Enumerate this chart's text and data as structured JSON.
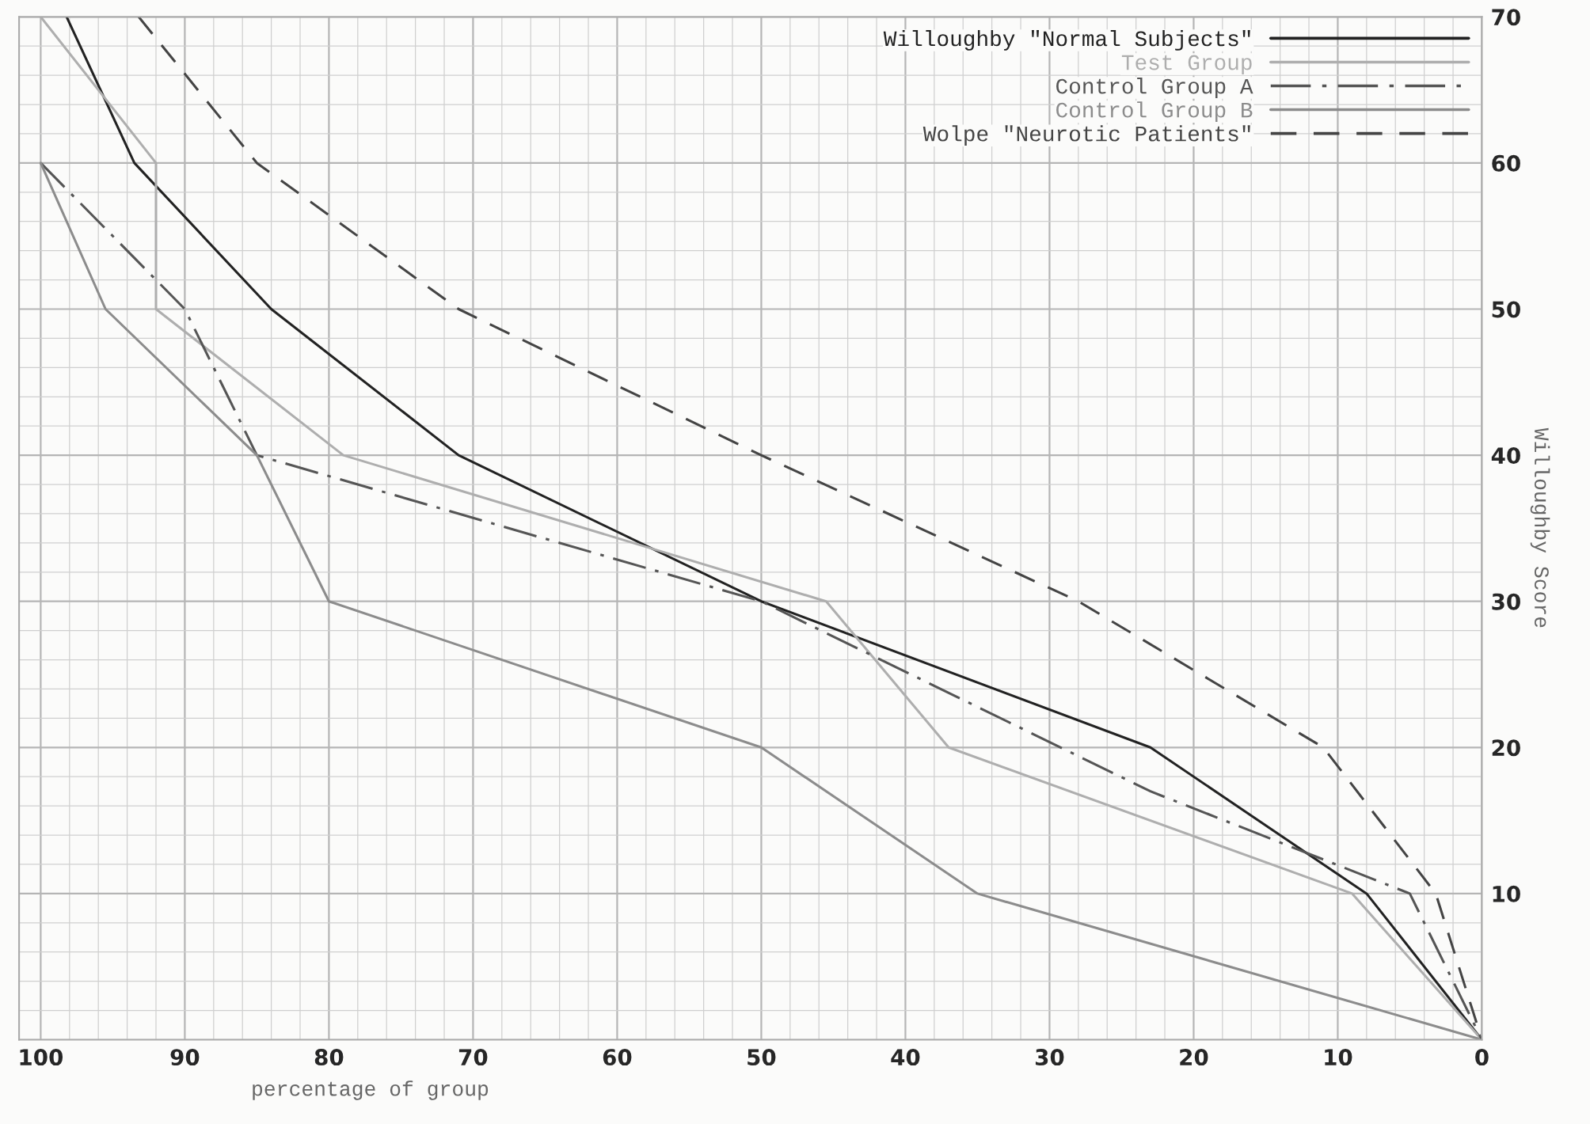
{
  "chart_data": {
    "type": "line",
    "xlabel": "percentage of group",
    "ylabel": "Willoughby Score",
    "xlim": [
      101.5,
      0
    ],
    "ylim": [
      0,
      70
    ],
    "xticks": [
      100,
      90,
      80,
      70,
      60,
      50,
      40,
      30,
      20,
      10,
      0
    ],
    "yticks": [
      10,
      20,
      30,
      40,
      50,
      60,
      70
    ],
    "grid": true,
    "legend": "top right",
    "marker": "none",
    "series": [
      {
        "name": "Willoughby \"Normal Subjects\"",
        "color": "#222222",
        "line_style": "solid",
        "x": [
          98.2,
          93.5,
          84,
          71,
          50,
          23,
          8,
          0
        ],
        "values": [
          70,
          60,
          50,
          40,
          30,
          20,
          10,
          0
        ]
      },
      {
        "name": "Test Group",
        "color": "#aeaeae",
        "line_style": "solid",
        "x": [
          100,
          92,
          92,
          79,
          45.5,
          37,
          9,
          0
        ],
        "values": [
          70,
          60,
          50,
          40,
          30,
          20,
          10,
          0
        ]
      },
      {
        "name": "Control Group A",
        "color": "#555555",
        "line_style": "dashdot",
        "x": [
          100,
          90,
          85,
          50,
          23,
          5,
          0
        ],
        "values": [
          60,
          50,
          40,
          30,
          17,
          10,
          0
        ]
      },
      {
        "name": "Control Group B",
        "color": "#8c8c8c",
        "line_style": "solid",
        "x": [
          100,
          95.5,
          85,
          80,
          50,
          35,
          0
        ],
        "values": [
          60,
          50,
          40,
          30,
          20,
          10,
          0
        ]
      },
      {
        "name": "Wolpe \"Neurotic Patients\"",
        "color": "#444444",
        "line_style": "dashed",
        "x": [
          93.2,
          85,
          71,
          50,
          28,
          11,
          3.2,
          0
        ],
        "values": [
          70,
          60,
          50,
          40,
          30,
          20,
          10,
          0
        ]
      }
    ]
  }
}
